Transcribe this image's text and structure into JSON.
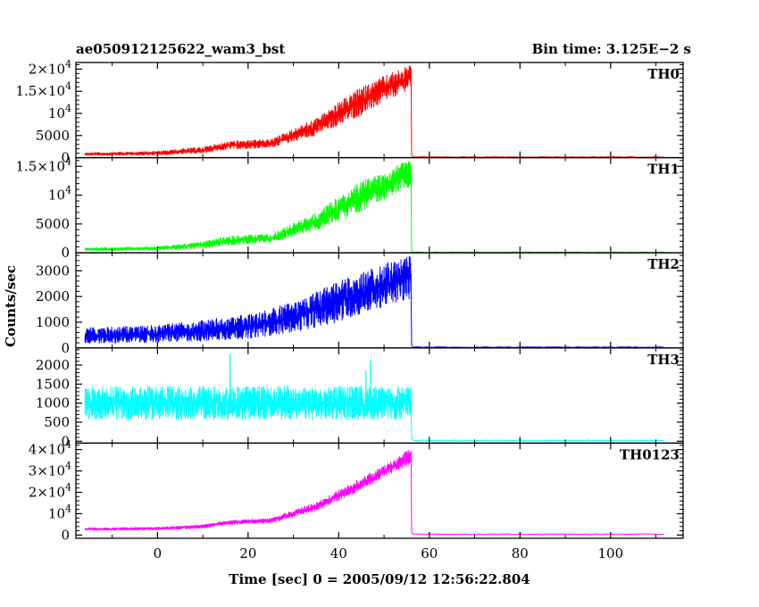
{
  "title_left": "ae050912125622_wam3_bst",
  "title_right": "Bin time: 3.125E−2 s",
  "ylabel": "Counts/sec",
  "xlabel": "Time [sec] 0 = 2005/09/12 12:56:22.804",
  "chart_data": {
    "type": "line",
    "x_range": [
      -18,
      116
    ],
    "x_ticks": [
      0,
      20,
      40,
      60,
      80,
      100
    ],
    "x_tick_labels": [
      "0",
      "20",
      "40",
      "60",
      "80",
      "100"
    ],
    "data_x_span": [
      -16,
      112
    ],
    "burst_end_time": 56,
    "panels": [
      {
        "name": "TH0",
        "color": "#ff0000",
        "ylim": [
          0,
          21500
        ],
        "y_ticks": [
          0,
          5000,
          10000,
          15000,
          20000
        ],
        "y_tick_labels": [
          {
            "base": "0",
            "exp": ""
          },
          {
            "base": "5000",
            "exp": ""
          },
          {
            "base": "10",
            "exp": "4"
          },
          {
            "base": "1.5×10",
            "exp": "4"
          },
          {
            "base": "2×10",
            "exp": "4"
          }
        ],
        "envelope": [
          {
            "t": -16,
            "low": 400,
            "high": 1200
          },
          {
            "t": 0,
            "low": 500,
            "high": 1500
          },
          {
            "t": 10,
            "low": 900,
            "high": 2500
          },
          {
            "t": 16,
            "low": 1800,
            "high": 3800
          },
          {
            "t": 25,
            "low": 2200,
            "high": 4200
          },
          {
            "t": 35,
            "low": 5000,
            "high": 9000
          },
          {
            "t": 45,
            "low": 9500,
            "high": 16000
          },
          {
            "t": 52,
            "low": 13500,
            "high": 19500
          },
          {
            "t": 56,
            "low": 15500,
            "high": 21000
          }
        ],
        "background": 150
      },
      {
        "name": "TH1",
        "color": "#00ff00",
        "ylim": [
          0,
          16500
        ],
        "y_ticks": [
          0,
          5000,
          10000,
          15000
        ],
        "y_tick_labels": [
          {
            "base": "0",
            "exp": ""
          },
          {
            "base": "5000",
            "exp": ""
          },
          {
            "base": "10",
            "exp": "4"
          },
          {
            "base": "1.5×10",
            "exp": "4"
          }
        ],
        "envelope": [
          {
            "t": -16,
            "low": 300,
            "high": 900
          },
          {
            "t": 0,
            "low": 400,
            "high": 1100
          },
          {
            "t": 10,
            "low": 700,
            "high": 2000
          },
          {
            "t": 16,
            "low": 1300,
            "high": 3000
          },
          {
            "t": 25,
            "low": 1700,
            "high": 3400
          },
          {
            "t": 35,
            "low": 3800,
            "high": 7000
          },
          {
            "t": 45,
            "low": 7200,
            "high": 12500
          },
          {
            "t": 52,
            "low": 10000,
            "high": 15000
          },
          {
            "t": 56,
            "low": 11500,
            "high": 16200
          }
        ],
        "background": 100
      },
      {
        "name": "TH2",
        "color": "#0000ff",
        "ylim": [
          0,
          3700
        ],
        "y_ticks": [
          0,
          1000,
          2000,
          3000
        ],
        "y_tick_labels": [
          {
            "base": "0",
            "exp": ""
          },
          {
            "base": "1000",
            "exp": ""
          },
          {
            "base": "2000",
            "exp": ""
          },
          {
            "base": "3000",
            "exp": ""
          }
        ],
        "envelope": [
          {
            "t": -16,
            "low": 150,
            "high": 800
          },
          {
            "t": 0,
            "low": 200,
            "high": 900
          },
          {
            "t": 10,
            "low": 250,
            "high": 1100
          },
          {
            "t": 20,
            "low": 350,
            "high": 1300
          },
          {
            "t": 30,
            "low": 600,
            "high": 1800
          },
          {
            "t": 40,
            "low": 1000,
            "high": 2600
          },
          {
            "t": 50,
            "low": 1600,
            "high": 3300
          },
          {
            "t": 56,
            "low": 1900,
            "high": 3600
          }
        ],
        "background": 30
      },
      {
        "name": "TH3",
        "color": "#00ffff",
        "ylim": [
          -50,
          2450
        ],
        "y_ticks": [
          0,
          500,
          1000,
          1500,
          2000
        ],
        "y_tick_labels": [
          {
            "base": "0",
            "exp": ""
          },
          {
            "base": "500",
            "exp": ""
          },
          {
            "base": "1000",
            "exp": ""
          },
          {
            "base": "1500",
            "exp": ""
          },
          {
            "base": "2000",
            "exp": ""
          }
        ],
        "envelope": [
          {
            "t": -16,
            "low": 550,
            "high": 1450
          },
          {
            "t": 56,
            "low": 550,
            "high": 1450
          }
        ],
        "spikes": [
          {
            "t": 16,
            "value": 2300
          },
          {
            "t": 47,
            "value": 2150
          },
          {
            "t": 46,
            "value": 1850
          }
        ],
        "background": 20
      },
      {
        "name": "TH0123",
        "color": "#ff00ff",
        "ylim": [
          -1500,
          43000
        ],
        "y_ticks": [
          0,
          10000,
          20000,
          30000,
          40000
        ],
        "y_tick_labels": [
          {
            "base": "0",
            "exp": ""
          },
          {
            "base": "10",
            "exp": "4"
          },
          {
            "base": "2×10",
            "exp": "4"
          },
          {
            "base": "3×10",
            "exp": "4"
          },
          {
            "base": "4×10",
            "exp": "4"
          }
        ],
        "envelope": [
          {
            "t": -16,
            "low": 2000,
            "high": 3500
          },
          {
            "t": 0,
            "low": 2300,
            "high": 3800
          },
          {
            "t": 10,
            "low": 3000,
            "high": 5000
          },
          {
            "t": 16,
            "low": 4800,
            "high": 7000
          },
          {
            "t": 25,
            "low": 5500,
            "high": 8000
          },
          {
            "t": 35,
            "low": 11000,
            "high": 15500
          },
          {
            "t": 45,
            "low": 21000,
            "high": 27000
          },
          {
            "t": 52,
            "low": 29000,
            "high": 35000
          },
          {
            "t": 56,
            "low": 33000,
            "high": 41000
          }
        ],
        "background": 400
      }
    ]
  }
}
